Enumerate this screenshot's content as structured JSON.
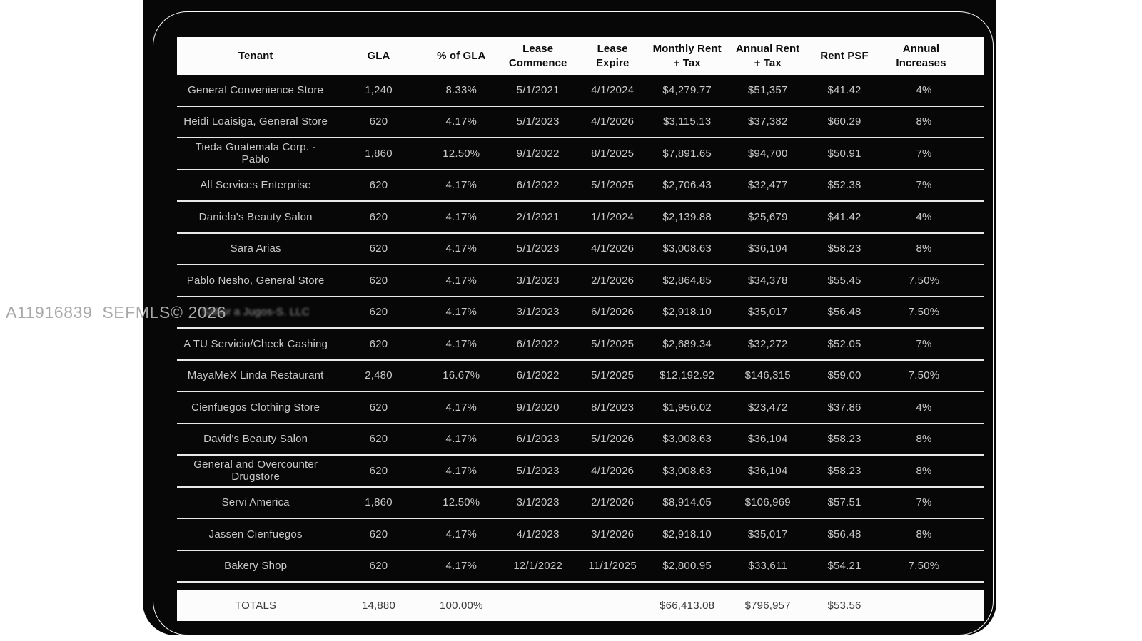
{
  "watermark": {
    "text": "A11916839  SEFMLS© 2026"
  },
  "colors": {
    "page_background": "#ffffff",
    "card_background": "#070707",
    "header_background": "#fcfcfc",
    "row_text": "#c9c9c9",
    "separator": "#e9e9e9",
    "totals_text": "#3a3a3a"
  },
  "table": {
    "columns": [
      {
        "label": "Tenant"
      },
      {
        "label": "GLA"
      },
      {
        "label": "% of GLA"
      },
      {
        "label": "Lease\nCommence"
      },
      {
        "label": "Lease\nExpire"
      },
      {
        "label": "Monthly Rent\n+ Tax"
      },
      {
        "label": "Annual Rent\n+ Tax"
      },
      {
        "label": "Rent PSF"
      },
      {
        "label": "Annual\nIncreases"
      }
    ],
    "rows": [
      [
        "General Convenience Store",
        "1,240",
        "8.33%",
        "5/1/2021",
        "4/1/2024",
        "$4,279.77",
        "$51,357",
        "$41.42",
        "4%"
      ],
      [
        "Heidi Loaisiga, General Store",
        "620",
        "4.17%",
        "5/1/2023",
        "4/1/2026",
        "$3,115.13",
        "$37,382",
        "$60.29",
        "8%"
      ],
      [
        "Tieda Guatemala Corp. - Pablo",
        "1,860",
        "12.50%",
        "9/1/2022",
        "8/1/2025",
        "$7,891.65",
        "$94,700",
        "$50.91",
        "7%"
      ],
      [
        "All Services Enterprise",
        "620",
        "4.17%",
        "6/1/2022",
        "5/1/2025",
        "$2,706.43",
        "$32,477",
        "$52.38",
        "7%"
      ],
      [
        "Daniela's Beauty Salon",
        "620",
        "4.17%",
        "2/1/2021",
        "1/1/2024",
        "$2,139.88",
        "$25,679",
        "$41.42",
        "4%"
      ],
      [
        "Sara Arias",
        "620",
        "4.17%",
        "5/1/2023",
        "4/1/2026",
        "$3,008.63",
        "$36,104",
        "$58.23",
        "8%"
      ],
      [
        "Pablo Nesho, General Store",
        "620",
        "4.17%",
        "3/1/2023",
        "2/1/2026",
        "$2,864.85",
        "$34,378",
        "$55.45",
        "7.50%"
      ],
      [
        "Sabor a Jugos-S. LLC",
        "620",
        "4.17%",
        "3/1/2023",
        "6/1/2026",
        "$2,918.10",
        "$35,017",
        "$56.48",
        "7.50%"
      ],
      [
        "A TU Servicio/Check Cashing",
        "620",
        "4.17%",
        "6/1/2022",
        "5/1/2025",
        "$2,689.34",
        "$32,272",
        "$52.05",
        "7%"
      ],
      [
        "MayaMeX Linda Restaurant",
        "2,480",
        "16.67%",
        "6/1/2022",
        "5/1/2025",
        "$12,192.92",
        "$146,315",
        "$59.00",
        "7.50%"
      ],
      [
        "Cienfuegos Clothing Store",
        "620",
        "4.17%",
        "9/1/2020",
        "8/1/2023",
        "$1,956.02",
        "$23,472",
        "$37.86",
        "4%"
      ],
      [
        "David's Beauty Salon",
        "620",
        "4.17%",
        "6/1/2023",
        "5/1/2026",
        "$3,008.63",
        "$36,104",
        "$58.23",
        "8%"
      ],
      [
        "General and Overcounter Drugstore",
        "620",
        "4.17%",
        "5/1/2023",
        "4/1/2026",
        "$3,008.63",
        "$36,104",
        "$58.23",
        "8%"
      ],
      [
        "Servi America",
        "1,860",
        "12.50%",
        "3/1/2023",
        "2/1/2026",
        "$8,914.05",
        "$106,969",
        "$57.51",
        "7%"
      ],
      [
        "Jassen Cienfuegos",
        "620",
        "4.17%",
        "4/1/2023",
        "3/1/2026",
        "$2,918.10",
        "$35,017",
        "$56.48",
        "8%"
      ],
      [
        "Bakery Shop",
        "620",
        "4.17%",
        "12/1/2022",
        "11/1/2025",
        "$2,800.95",
        "$33,611",
        "$54.21",
        "7.50%"
      ]
    ],
    "obscured_row_index": 7,
    "totals": [
      "TOTALS",
      "14,880",
      "100.00%",
      "",
      "",
      "$66,413.08",
      "$796,957",
      "$53.56",
      ""
    ]
  }
}
